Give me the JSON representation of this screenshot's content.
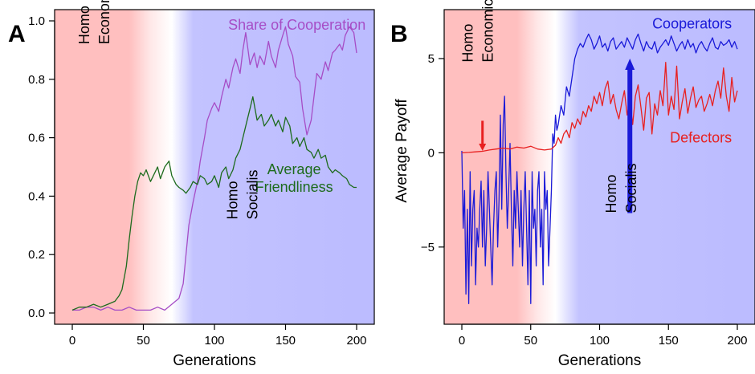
{
  "chart_data": [
    {
      "type": "line",
      "panel_label": "A",
      "xlabel": "Generations",
      "ylabel": "",
      "xlim": [
        0,
        200
      ],
      "ylim": [
        0.0,
        1.0
      ],
      "x_ticks": [
        0,
        50,
        100,
        150,
        200
      ],
      "y_ticks": [
        "0.0",
        "0.2",
        "0.4",
        "0.6",
        "0.8",
        "1.0"
      ],
      "background": {
        "gradient_stops_x": [
          0,
          40,
          55,
          70,
          85,
          200
        ],
        "gradient_colors": [
          "#ffbfbf",
          "#ffbfbf",
          "#ffe8e8",
          "#ffffff",
          "#c3c3ff",
          "#bcbcff"
        ]
      },
      "annotations": [
        {
          "lines": [
            "Homo",
            "Economicus"
          ],
          "x": 12,
          "y": 0.92,
          "color": "#000000",
          "rotation": -90
        },
        {
          "lines": [
            "Homo",
            "Socialis"
          ],
          "x": 116,
          "y": 0.32,
          "color": "#000000",
          "rotation": -90
        }
      ],
      "series": [
        {
          "name": "Share of Cooperation",
          "label_lines": [
            "Share of Cooperation"
          ],
          "label_pos": {
            "x": 158,
            "y": 0.97
          },
          "label_anchor": "middle",
          "color": "#a64dc6",
          "x": [
            0,
            5,
            10,
            15,
            20,
            25,
            30,
            35,
            40,
            45,
            50,
            55,
            60,
            65,
            70,
            75,
            78,
            80,
            82,
            85,
            88,
            90,
            93,
            95,
            98,
            100,
            103,
            105,
            108,
            110,
            113,
            115,
            118,
            120,
            122,
            125,
            128,
            130,
            132,
            135,
            138,
            140,
            143,
            145,
            148,
            150,
            152,
            155,
            157,
            160,
            162,
            165,
            168,
            170,
            172,
            175,
            178,
            180,
            183,
            185,
            188,
            190,
            192,
            195,
            198,
            200
          ],
          "y": [
            0.01,
            0.01,
            0.02,
            0.02,
            0.01,
            0.02,
            0.01,
            0.01,
            0.02,
            0.01,
            0.01,
            0.01,
            0.02,
            0.01,
            0.03,
            0.05,
            0.1,
            0.2,
            0.3,
            0.38,
            0.45,
            0.52,
            0.6,
            0.66,
            0.7,
            0.72,
            0.69,
            0.74,
            0.8,
            0.77,
            0.84,
            0.87,
            0.82,
            0.9,
            0.96,
            0.85,
            0.89,
            0.84,
            0.88,
            0.85,
            0.93,
            0.88,
            0.84,
            0.9,
            0.95,
            0.98,
            0.92,
            0.88,
            0.81,
            0.79,
            0.7,
            0.61,
            0.66,
            0.74,
            0.82,
            0.8,
            0.86,
            0.83,
            0.89,
            0.9,
            0.92,
            0.9,
            0.95,
            0.98,
            0.96,
            0.89
          ]
        },
        {
          "name": "Average Friendliness",
          "label_lines": [
            "Average",
            "Friendliness"
          ],
          "label_pos": {
            "x": 156,
            "y": 0.475
          },
          "label_anchor": "middle",
          "color": "#1d6b1d",
          "x": [
            0,
            5,
            10,
            15,
            20,
            25,
            30,
            33,
            35,
            38,
            40,
            42,
            44,
            46,
            48,
            50,
            52,
            55,
            58,
            60,
            62,
            65,
            68,
            70,
            73,
            75,
            78,
            80,
            83,
            85,
            88,
            90,
            93,
            95,
            98,
            100,
            103,
            105,
            108,
            110,
            113,
            115,
            118,
            120,
            123,
            125,
            127,
            130,
            133,
            135,
            138,
            140,
            143,
            145,
            148,
            150,
            153,
            155,
            158,
            160,
            163,
            165,
            168,
            170,
            173,
            175,
            178,
            180,
            183,
            185,
            188,
            190,
            193,
            195,
            198,
            200
          ],
          "y": [
            0.01,
            0.02,
            0.02,
            0.03,
            0.02,
            0.03,
            0.04,
            0.06,
            0.08,
            0.16,
            0.25,
            0.33,
            0.4,
            0.45,
            0.48,
            0.47,
            0.49,
            0.45,
            0.48,
            0.5,
            0.46,
            0.5,
            0.52,
            0.47,
            0.44,
            0.43,
            0.42,
            0.41,
            0.43,
            0.45,
            0.44,
            0.47,
            0.46,
            0.44,
            0.45,
            0.47,
            0.43,
            0.48,
            0.5,
            0.46,
            0.49,
            0.53,
            0.56,
            0.6,
            0.66,
            0.7,
            0.74,
            0.66,
            0.68,
            0.64,
            0.66,
            0.68,
            0.64,
            0.66,
            0.62,
            0.67,
            0.64,
            0.58,
            0.6,
            0.57,
            0.6,
            0.56,
            0.55,
            0.53,
            0.56,
            0.53,
            0.54,
            0.5,
            0.48,
            0.49,
            0.48,
            0.47,
            0.46,
            0.44,
            0.43,
            0.43
          ]
        }
      ]
    },
    {
      "type": "line",
      "panel_label": "B",
      "xlabel": "Generations",
      "ylabel": "Average Payoff",
      "xlim": [
        0,
        200
      ],
      "ylim": [
        -8.5,
        7
      ],
      "x_ticks": [
        0,
        50,
        100,
        150,
        200
      ],
      "y_ticks": [
        "-5",
        "0",
        "5"
      ],
      "background": {
        "gradient_stops_x": [
          0,
          40,
          55,
          68,
          85,
          200
        ],
        "gradient_colors": [
          "#ffbfbf",
          "#ffbfbf",
          "#ffe8e8",
          "#ffffff",
          "#c3c3ff",
          "#bcbcff"
        ]
      },
      "annotations": [
        {
          "lines": [
            "Homo",
            "Economicus"
          ],
          "x": 8,
          "y": 4.8,
          "color": "#000000",
          "rotation": -90
        },
        {
          "lines": [
            "Homo",
            "Socialis"
          ],
          "x": 112,
          "y": -3.2,
          "color": "#000000",
          "rotation": -90
        }
      ],
      "arrows": [
        {
          "x": 15,
          "y_from": 1.7,
          "y_to": 0.1,
          "color": "#e82020",
          "thickness": "thin"
        },
        {
          "x": 122,
          "y_from": -3.2,
          "y_to": 5.0,
          "color": "#1a1ad8",
          "thickness": "thick"
        }
      ],
      "series": [
        {
          "name": "Cooperators",
          "label_lines": [
            "Cooperators"
          ],
          "label_pos": {
            "x": 196,
            "y": 6.6
          },
          "label_anchor": "end",
          "color": "#1a1ad8",
          "x": [
            0,
            1,
            2,
            3,
            4,
            5,
            6,
            7,
            8,
            9,
            10,
            11,
            12,
            13,
            14,
            15,
            16,
            17,
            18,
            19,
            20,
            21,
            22,
            23,
            24,
            25,
            26,
            27,
            28,
            29,
            30,
            31,
            32,
            33,
            34,
            35,
            36,
            37,
            38,
            39,
            40,
            41,
            42,
            43,
            44,
            45,
            46,
            47,
            48,
            49,
            50,
            51,
            52,
            53,
            54,
            55,
            56,
            57,
            58,
            59,
            60,
            61,
            62,
            63,
            64,
            65,
            66,
            67,
            68,
            69,
            70,
            72,
            74,
            76,
            78,
            80,
            82,
            84,
            86,
            88,
            90,
            92,
            94,
            96,
            98,
            100,
            102,
            104,
            106,
            108,
            110,
            112,
            114,
            116,
            118,
            120,
            122,
            124,
            126,
            128,
            130,
            132,
            134,
            136,
            138,
            140,
            142,
            144,
            146,
            148,
            150,
            152,
            154,
            156,
            158,
            160,
            162,
            164,
            166,
            168,
            170,
            172,
            174,
            176,
            178,
            180,
            182,
            184,
            186,
            188,
            190,
            192,
            194,
            196,
            198,
            200
          ],
          "y": [
            0.1,
            -4,
            -2,
            -7.5,
            -3,
            -8,
            -1,
            -6,
            -3,
            -2,
            -7,
            -4,
            -5,
            -3,
            -1.5,
            -5,
            -2,
            -6,
            -4,
            -1,
            -3,
            -5,
            -7,
            -4,
            -2,
            -1,
            -5,
            -2.5,
            2,
            -3,
            1.5,
            3,
            -1,
            -4,
            -2,
            0.5,
            -3,
            -6,
            -2,
            -4,
            -1,
            -3,
            -5,
            -2,
            -6,
            -3,
            -1,
            -4,
            -7,
            -2,
            -8,
            -1,
            -4,
            -3,
            -6,
            -2,
            -1,
            -5,
            -3,
            -7,
            -1,
            -3,
            -2,
            -6,
            -4,
            -2,
            1,
            0.5,
            2,
            1.2,
            1.5,
            2.5,
            2,
            3.5,
            3,
            4,
            5,
            5.5,
            5.8,
            5.6,
            6.0,
            6.3,
            6.0,
            5.5,
            5.8,
            6.2,
            5.6,
            5.8,
            5.4,
            5.9,
            6.1,
            5.5,
            5.7,
            5.9,
            5.6,
            6.1,
            5.8,
            5.5,
            6.0,
            6.3,
            5.8,
            5.4,
            5.9,
            5.6,
            5.5,
            5.9,
            5.3,
            5.6,
            5.8,
            6.0,
            5.7,
            6.2,
            5.8,
            5.4,
            5.7,
            5.9,
            5.5,
            6.0,
            5.6,
            5.8,
            5.3,
            5.7,
            5.9,
            5.6,
            5.4,
            5.8,
            6.1,
            5.6,
            5.5,
            5.9,
            5.7,
            5.8,
            6.0,
            5.6,
            5.9,
            5.5
          ]
        },
        {
          "name": "Defectors",
          "label_lines": [
            "Defectors"
          ],
          "label_pos": {
            "x": 196,
            "y": 0.55
          },
          "label_anchor": "end",
          "color": "#e82020",
          "x": [
            0,
            5,
            10,
            15,
            20,
            25,
            30,
            35,
            40,
            45,
            50,
            55,
            60,
            65,
            68,
            70,
            72,
            74,
            76,
            78,
            80,
            82,
            84,
            86,
            88,
            90,
            92,
            94,
            96,
            98,
            100,
            102,
            104,
            106,
            108,
            110,
            112,
            114,
            116,
            118,
            120,
            122,
            124,
            126,
            128,
            130,
            132,
            134,
            136,
            138,
            140,
            142,
            144,
            146,
            148,
            150,
            152,
            154,
            156,
            158,
            160,
            162,
            164,
            166,
            168,
            170,
            172,
            174,
            176,
            178,
            180,
            182,
            184,
            186,
            188,
            190,
            192,
            194,
            196,
            198,
            200
          ],
          "y": [
            0.0,
            0.02,
            0.05,
            0.08,
            0.15,
            0.2,
            0.25,
            0.2,
            0.3,
            0.25,
            0.35,
            0.2,
            0.15,
            0.2,
            0.4,
            0.8,
            0.5,
            1.0,
            1.2,
            0.8,
            1.6,
            1.3,
            1.8,
            1.5,
            2.2,
            1.9,
            2.5,
            2.2,
            3.0,
            2.6,
            3.2,
            2.5,
            3.4,
            3.8,
            2.6,
            3.1,
            2.3,
            1.8,
            2.6,
            3.3,
            2.0,
            2.8,
            1.5,
            3.0,
            3.6,
            2.4,
            1.2,
            2.9,
            3.2,
            1.0,
            2.6,
            2.0,
            3.3,
            2.5,
            4.8,
            2.0,
            3.0,
            2.3,
            4.6,
            1.8,
            2.7,
            3.4,
            2.1,
            2.9,
            3.5,
            2.4,
            2.8,
            3.0,
            2.2,
            2.6,
            3.1,
            2.5,
            3.3,
            3.8,
            2.9,
            4.5,
            3.0,
            2.2,
            4.0,
            2.7,
            3.3
          ]
        }
      ]
    }
  ]
}
